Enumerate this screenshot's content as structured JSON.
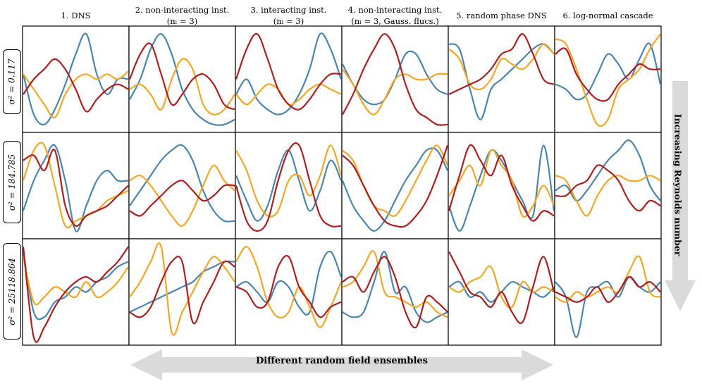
{
  "colors": {
    "blue": "#4a86b0",
    "orange": "#f5a623",
    "red": "#b01e1e",
    "arrow": "#dadada"
  },
  "column_titles": [
    {
      "line1": "1. DNS",
      "line2": ""
    },
    {
      "line1": "2. non-interacting inst.",
      "line2": "(nₗ = 3)"
    },
    {
      "line1": "3. interacting inst.",
      "line2": "(nₗ = 3)"
    },
    {
      "line1": "4. non-interacting inst.",
      "line2": "(nₗ = 3, Gauss. flucs.)"
    },
    {
      "line1": "5. random phase DNS",
      "line2": ""
    },
    {
      "line1": "6. log-normal cascade",
      "line2": ""
    }
  ],
  "row_labels": [
    "σ² = 0.117",
    "σ² = 184.785",
    "σ² = 25118.864"
  ],
  "right_arrow_label": "Increasing Reynolds number",
  "bottom_arrow_label": "Different random field ensembles",
  "chart_data": {
    "type": "line",
    "series_colors": [
      "blue",
      "orange",
      "red"
    ],
    "x": [
      0.0,
      0.1,
      0.2,
      0.3,
      0.4,
      0.5,
      0.6,
      0.7,
      0.8,
      0.9,
      1.0
    ],
    "ylim": [
      0,
      1
    ],
    "panels": [
      [
        {
          "blue": [
            0.55,
            0.15,
            0.05,
            0.2,
            0.45,
            0.75,
            0.95,
            0.55,
            0.35,
            0.5,
            0.5
          ],
          "orange": [
            0.55,
            0.4,
            0.25,
            0.12,
            0.35,
            0.5,
            0.55,
            0.5,
            0.55,
            0.5,
            0.58
          ],
          "red": [
            0.35,
            0.5,
            0.6,
            0.7,
            0.6,
            0.4,
            0.18,
            0.3,
            0.4,
            0.45,
            0.4
          ]
        },
        {
          "blue": [
            0.3,
            0.5,
            0.8,
            0.95,
            0.75,
            0.4,
            0.2,
            0.1,
            0.05,
            0.05,
            0.1
          ],
          "orange": [
            0.4,
            0.45,
            0.35,
            0.2,
            0.5,
            0.7,
            0.6,
            0.25,
            0.15,
            0.2,
            0.35
          ],
          "red": [
            0.5,
            0.75,
            0.85,
            0.55,
            0.25,
            0.35,
            0.5,
            0.55,
            0.45,
            0.25,
            0.2
          ]
        },
        {
          "blue": [
            0.35,
            0.5,
            0.3,
            0.2,
            0.15,
            0.2,
            0.35,
            0.6,
            0.95,
            0.8,
            0.5
          ],
          "orange": [
            0.35,
            0.25,
            0.35,
            0.45,
            0.4,
            0.25,
            0.3,
            0.4,
            0.45,
            0.4,
            0.35
          ],
          "red": [
            0.5,
            0.8,
            0.95,
            0.7,
            0.4,
            0.25,
            0.2,
            0.3,
            0.45,
            0.55,
            0.55
          ]
        },
        {
          "blue": [
            0.65,
            0.45,
            0.3,
            0.25,
            0.3,
            0.5,
            0.75,
            0.75,
            0.55,
            0.4,
            0.35
          ],
          "orange": [
            0.6,
            0.45,
            0.25,
            0.15,
            0.3,
            0.5,
            0.55,
            0.5,
            0.5,
            0.55,
            0.55
          ],
          "red": [
            0.15,
            0.35,
            0.6,
            0.8,
            0.95,
            0.8,
            0.45,
            0.2,
            0.12,
            0.05,
            0.05
          ]
        },
        {
          "blue": [
            0.85,
            0.8,
            0.4,
            0.1,
            0.4,
            0.5,
            0.6,
            0.7,
            0.8,
            0.85,
            0.75
          ],
          "orange": [
            0.8,
            0.7,
            0.45,
            0.4,
            0.5,
            0.7,
            0.65,
            0.6,
            0.7,
            0.85,
            0.75
          ],
          "red": [
            0.35,
            0.4,
            0.45,
            0.5,
            0.6,
            0.75,
            0.8,
            0.95,
            0.75,
            0.5,
            0.45
          ]
        },
        {
          "blue": [
            0.45,
            0.4,
            0.3,
            0.35,
            0.55,
            0.75,
            0.65,
            0.5,
            0.7,
            0.85,
            0.45
          ],
          "orange": [
            0.9,
            0.85,
            0.6,
            0.3,
            0.05,
            0.1,
            0.4,
            0.5,
            0.6,
            0.8,
            0.95
          ],
          "red": [
            0.75,
            0.8,
            0.55,
            0.4,
            0.3,
            0.3,
            0.45,
            0.55,
            0.65,
            0.6,
            0.6
          ]
        }
      ],
      [
        {
          "blue": [
            0.25,
            0.55,
            0.75,
            0.9,
            0.55,
            0.05,
            0.3,
            0.55,
            0.65,
            0.55,
            0.55
          ],
          "orange": [
            0.55,
            0.85,
            0.9,
            0.5,
            0.1,
            0.15,
            0.2,
            0.25,
            0.35,
            0.4,
            0.45
          ],
          "red": [
            0.75,
            0.8,
            0.65,
            0.85,
            0.3,
            0.1,
            0.2,
            0.25,
            0.3,
            0.4,
            0.5
          ]
        },
        {
          "blue": [
            0.3,
            0.45,
            0.6,
            0.75,
            0.85,
            0.9,
            0.75,
            0.45,
            0.25,
            0.15,
            0.15
          ],
          "orange": [
            0.55,
            0.6,
            0.5,
            0.35,
            0.2,
            0.1,
            0.25,
            0.5,
            0.7,
            0.55,
            0.45
          ],
          "red": [
            0.25,
            0.2,
            0.3,
            0.4,
            0.5,
            0.55,
            0.45,
            0.35,
            0.4,
            0.5,
            0.5
          ]
        },
        {
          "blue": [
            0.6,
            0.35,
            0.15,
            0.3,
            0.65,
            0.85,
            0.55,
            0.25,
            0.45,
            0.75,
            0.55
          ],
          "orange": [
            0.85,
            0.65,
            0.35,
            0.2,
            0.25,
            0.55,
            0.6,
            0.4,
            0.6,
            0.9,
            0.6
          ],
          "red": [
            0.5,
            0.15,
            0.05,
            0.15,
            0.55,
            0.85,
            0.9,
            0.55,
            0.2,
            0.1,
            0.1
          ]
        },
        {
          "blue": [
            0.55,
            0.3,
            0.15,
            0.05,
            0.15,
            0.35,
            0.55,
            0.7,
            0.85,
            0.85,
            0.65
          ],
          "orange": [
            0.85,
            0.75,
            0.5,
            0.3,
            0.25,
            0.2,
            0.35,
            0.55,
            0.75,
            0.9,
            0.7
          ],
          "red": [
            0.8,
            0.7,
            0.5,
            0.3,
            0.15,
            0.1,
            0.1,
            0.2,
            0.35,
            0.6,
            0.9
          ]
        },
        {
          "blue": [
            0.3,
            0.05,
            0.3,
            0.6,
            0.85,
            0.75,
            0.55,
            0.35,
            0.2,
            0.9,
            0.25
          ],
          "orange": [
            0.4,
            0.55,
            0.7,
            0.5,
            0.85,
            0.7,
            0.55,
            0.2,
            0.3,
            0.5,
            0.3
          ],
          "red": [
            0.25,
            0.6,
            0.9,
            0.75,
            0.6,
            0.8,
            0.5,
            0.3,
            0.15,
            0.25,
            0.2
          ]
        },
        {
          "blue": [
            0.45,
            0.5,
            0.35,
            0.45,
            0.6,
            0.75,
            0.85,
            0.95,
            0.8,
            0.5,
            0.35
          ],
          "orange": [
            0.6,
            0.55,
            0.35,
            0.2,
            0.4,
            0.55,
            0.6,
            0.55,
            0.55,
            0.6,
            0.55
          ],
          "red": [
            0.4,
            0.4,
            0.5,
            0.55,
            0.7,
            0.65,
            0.55,
            0.35,
            0.25,
            0.35,
            0.3
          ]
        }
      ],
      [
        {
          "blue": [
            0.9,
            0.3,
            0.25,
            0.4,
            0.45,
            0.55,
            0.5,
            0.6,
            0.65,
            0.75,
            0.8
          ],
          "orange": [
            0.85,
            0.4,
            0.45,
            0.55,
            0.5,
            0.45,
            0.6,
            0.45,
            0.5,
            0.6,
            0.75
          ],
          "red": [
            0.95,
            0.05,
            0.15,
            0.35,
            0.5,
            0.6,
            0.65,
            0.6,
            0.7,
            0.8,
            0.95
          ]
        },
        {
          "blue": [
            0.3,
            0.35,
            0.4,
            0.45,
            0.5,
            0.55,
            0.6,
            0.7,
            0.75,
            0.8,
            0.8
          ],
          "orange": [
            0.45,
            0.6,
            0.8,
            0.95,
            0.1,
            0.3,
            0.5,
            0.7,
            0.85,
            0.75,
            0.6
          ],
          "red": [
            0.3,
            0.25,
            0.35,
            0.6,
            0.8,
            0.8,
            0.2,
            0.4,
            0.6,
            0.8,
            0.75
          ]
        },
        {
          "blue": [
            0.55,
            0.6,
            0.5,
            0.4,
            0.6,
            0.55,
            0.35,
            0.3,
            0.75,
            0.9,
            0.65
          ],
          "orange": [
            0.8,
            0.95,
            0.75,
            0.4,
            0.25,
            0.3,
            0.55,
            0.35,
            0.15,
            0.35,
            0.6
          ],
          "red": [
            0.55,
            0.5,
            0.35,
            0.4,
            0.75,
            0.85,
            0.55,
            0.4,
            0.25,
            0.35,
            0.4
          ]
        },
        {
          "blue": [
            0.3,
            0.25,
            0.3,
            0.6,
            0.9,
            0.5,
            0.55,
            0.3,
            0.2,
            0.25,
            0.3
          ],
          "orange": [
            0.55,
            0.6,
            0.75,
            0.9,
            0.5,
            0.45,
            0.4,
            0.35,
            0.4,
            0.3,
            0.25
          ],
          "red": [
            0.6,
            0.65,
            0.5,
            0.7,
            0.85,
            0.65,
            0.3,
            0.15,
            0.45,
            0.4,
            0.3
          ]
        },
        {
          "blue": [
            0.55,
            0.6,
            0.45,
            0.5,
            0.4,
            0.5,
            0.6,
            0.55,
            0.5,
            0.45,
            0.55
          ],
          "orange": [
            0.55,
            0.5,
            0.6,
            0.65,
            0.75,
            0.45,
            0.35,
            0.6,
            0.5,
            0.55,
            0.5
          ],
          "red": [
            0.9,
            0.7,
            0.5,
            0.45,
            0.35,
            0.5,
            0.3,
            0.2,
            0.55,
            0.85,
            0.5
          ]
        },
        {
          "blue": [
            0.6,
            0.45,
            0.05,
            0.5,
            0.55,
            0.6,
            0.45,
            0.65,
            0.55,
            0.5,
            0.6
          ],
          "orange": [
            0.45,
            0.4,
            0.5,
            0.45,
            0.5,
            0.55,
            0.5,
            0.7,
            0.85,
            0.5,
            0.45
          ],
          "red": [
            0.5,
            0.45,
            0.4,
            0.45,
            0.55,
            0.4,
            0.5,
            0.65,
            0.55,
            0.6,
            0.5
          ]
        }
      ]
    ]
  }
}
